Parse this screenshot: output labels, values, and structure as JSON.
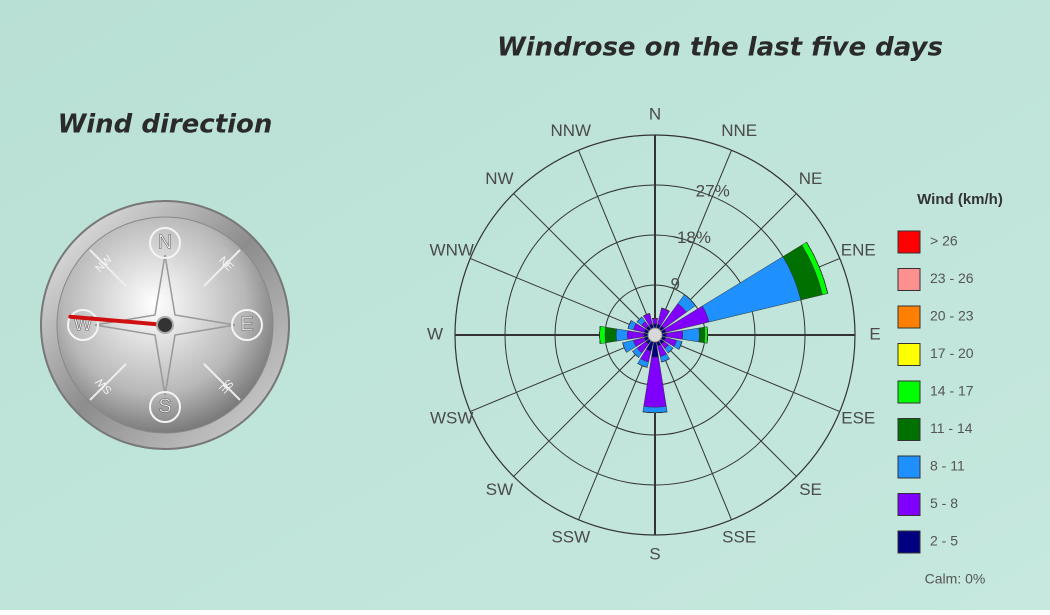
{
  "panel": {
    "title": "Wind direction"
  },
  "compass": {
    "labels": [
      "N",
      "NE",
      "E",
      "SE",
      "S",
      "SW",
      "W",
      "NW"
    ],
    "needle_deg": 275
  },
  "chart_data": {
    "type": "windrose",
    "title": "Windrose on the last five days",
    "categories": [
      "N",
      "NNE",
      "NE",
      "ENE",
      "E",
      "ESE",
      "SE",
      "SSE",
      "S",
      "SSW",
      "SW",
      "WSW",
      "W",
      "WNW",
      "NW",
      "NNW"
    ],
    "series": [
      {
        "name": "2 - 5",
        "color": "#000080",
        "values": [
          2,
          2,
          2,
          2,
          2,
          2,
          2,
          2,
          4,
          3,
          2,
          2,
          2,
          2,
          2,
          2
        ]
      },
      {
        "name": "5 - 8",
        "color": "#7f00ff",
        "values": [
          1,
          3,
          5,
          8,
          3,
          2,
          1,
          2,
          9,
          2,
          2,
          2,
          3,
          2,
          1,
          2
        ]
      },
      {
        "name": "8 - 11",
        "color": "#1e90ff",
        "values": [
          0,
          0,
          2,
          17,
          3,
          1,
          1,
          1,
          1,
          1,
          1,
          2,
          2,
          1,
          1,
          0
        ]
      },
      {
        "name": "11 - 14",
        "color": "#007000",
        "values": [
          0,
          0,
          0,
          4,
          1,
          0,
          0,
          0,
          0,
          0,
          0,
          0,
          2,
          0,
          0,
          0
        ]
      },
      {
        "name": "14 - 17",
        "color": "#00ff00",
        "values": [
          0,
          0,
          0,
          1,
          0.5,
          0,
          0,
          0,
          0,
          0,
          0,
          0,
          1,
          0,
          0,
          0
        ]
      },
      {
        "name": "17 - 20",
        "color": "#ffff00",
        "values": [
          0,
          0,
          0,
          0,
          0,
          0,
          0,
          0,
          0,
          0,
          0,
          0,
          0,
          0,
          0,
          0
        ]
      },
      {
        "name": "20 - 23",
        "color": "#ff8000",
        "values": [
          0,
          0,
          0,
          0,
          0,
          0,
          0,
          0,
          0,
          0,
          0,
          0,
          0,
          0,
          0,
          0
        ]
      },
      {
        "name": "23 - 26",
        "color": "#ff9090",
        "values": [
          0,
          0,
          0,
          0,
          0,
          0,
          0,
          0,
          0,
          0,
          0,
          0,
          0,
          0,
          0,
          0
        ]
      },
      {
        "name": "> 26",
        "color": "#ff0000",
        "values": [
          0,
          0,
          0,
          0,
          0,
          0,
          0,
          0,
          0,
          0,
          0,
          0,
          0,
          0,
          0,
          0
        ]
      }
    ],
    "rlim": [
      0,
      36
    ],
    "rticks": [
      {
        "value": 9,
        "label": "9"
      },
      {
        "value": 18,
        "label": "18%"
      },
      {
        "value": 27,
        "label": "27%"
      }
    ],
    "legend_title": "Wind (km/h)",
    "calm": {
      "value": 0,
      "label": "Calm: 0%"
    }
  }
}
